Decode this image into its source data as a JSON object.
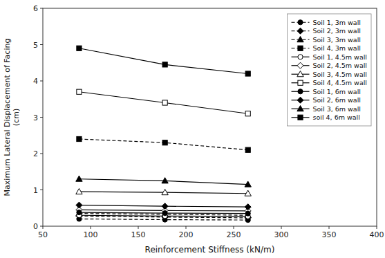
{
  "chart_data": {
    "type": "line",
    "x": [
      88,
      178,
      265
    ],
    "series": [
      {
        "name": "Soil 1, 3m wall",
        "values": [
          0.2,
          0.18,
          0.17
        ],
        "color": "#000000",
        "line_style": "dashed",
        "marker": "circle"
      },
      {
        "name": "Soil 2, 3m wall",
        "values": [
          0.28,
          0.25,
          0.23
        ],
        "color": "#000000",
        "line_style": "dashed",
        "marker": "diamond"
      },
      {
        "name": "Soil 3, 3m wall",
        "values": [
          0.35,
          0.33,
          0.3
        ],
        "color": "#000000",
        "line_style": "dashed",
        "marker": "triangle"
      },
      {
        "name": "Soil 4, 3m wall",
        "values": [
          2.4,
          2.3,
          2.1
        ],
        "color": "#000000",
        "line_style": "dashed",
        "marker": "square"
      },
      {
        "name": "Soil 1, 4.5m wall",
        "values": [
          0.3,
          0.28,
          0.27
        ],
        "color": "#000000",
        "line_style": "solid",
        "marker": "circle-open"
      },
      {
        "name": "Soil 2, 4.5m wall",
        "values": [
          0.45,
          0.43,
          0.42
        ],
        "color": "#000000",
        "line_style": "solid",
        "marker": "diamond-open"
      },
      {
        "name": "Soil 3, 4.5m wall",
        "values": [
          0.95,
          0.93,
          0.9
        ],
        "color": "#000000",
        "line_style": "solid",
        "marker": "triangle-open"
      },
      {
        "name": "Soil 4, 4.5m wall",
        "values": [
          3.7,
          3.4,
          3.1
        ],
        "color": "#000000",
        "line_style": "solid",
        "marker": "square-open"
      },
      {
        "name": "Soil 1, 6m wall",
        "values": [
          0.38,
          0.36,
          0.35
        ],
        "color": "#000000",
        "line_style": "solid",
        "marker": "circle"
      },
      {
        "name": "Soil 2, 6m wall",
        "values": [
          0.58,
          0.55,
          0.53
        ],
        "color": "#000000",
        "line_style": "solid",
        "marker": "diamond"
      },
      {
        "name": "Soil 3, 6m wall",
        "values": [
          1.3,
          1.25,
          1.15
        ],
        "color": "#000000",
        "line_style": "solid",
        "marker": "triangle"
      },
      {
        "name": "soil 4, 6m wall",
        "values": [
          4.9,
          4.45,
          4.2
        ],
        "color": "#000000",
        "line_style": "solid",
        "marker": "square"
      }
    ],
    "xlabel": "Reinforcement Stiffness (kN/m)",
    "ylabel": "Maximum Lateral Displacement of Facing\n(cm)",
    "xlim": [
      50,
      400
    ],
    "ylim": [
      0,
      6
    ],
    "xticks": [
      50,
      100,
      150,
      200,
      250,
      300,
      350,
      400
    ],
    "yticks": [
      0,
      1,
      2,
      3,
      4,
      5,
      6
    ],
    "grid": false,
    "legend": "upper-right"
  }
}
